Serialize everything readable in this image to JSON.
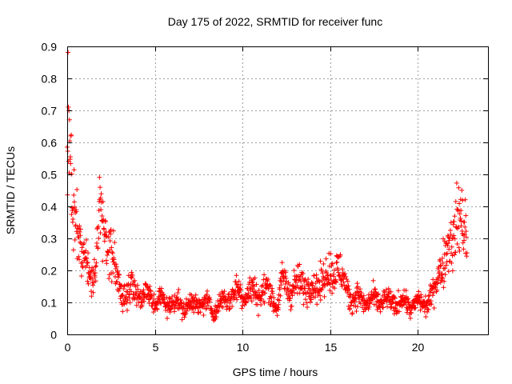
{
  "chart_data": {
    "type": "scatter",
    "title": "Day 175 of 2022, SRMTID for receiver func",
    "xlabel": "GPS time / hours",
    "ylabel": "SRMTID / TECUs",
    "xlim": [
      0,
      24
    ],
    "ylim": [
      0,
      0.9
    ],
    "xticks": [
      0,
      5,
      10,
      15,
      20
    ],
    "yticks": [
      0,
      0.1,
      0.2,
      0.3,
      0.4,
      0.5,
      0.6,
      0.7,
      0.8,
      0.9
    ],
    "grid": true,
    "marker": "+",
    "series": [
      {
        "name": "SRMTID",
        "color": "#ff0000",
        "anchors": [
          [
            0.0,
            0.45
          ],
          [
            0.05,
            0.8
          ],
          [
            0.15,
            0.55
          ],
          [
            0.3,
            0.38
          ],
          [
            0.5,
            0.36
          ],
          [
            0.7,
            0.3
          ],
          [
            1.0,
            0.22
          ],
          [
            1.3,
            0.18
          ],
          [
            1.6,
            0.2
          ],
          [
            1.9,
            0.42
          ],
          [
            2.1,
            0.3
          ],
          [
            2.4,
            0.28
          ],
          [
            2.7,
            0.22
          ],
          [
            3.0,
            0.14
          ],
          [
            3.3,
            0.12
          ],
          [
            3.6,
            0.15
          ],
          [
            4.0,
            0.13
          ],
          [
            4.5,
            0.12
          ],
          [
            5.0,
            0.11
          ],
          [
            5.5,
            0.1
          ],
          [
            6.0,
            0.1
          ],
          [
            6.5,
            0.09
          ],
          [
            7.0,
            0.09
          ],
          [
            7.5,
            0.1
          ],
          [
            8.0,
            0.09
          ],
          [
            8.5,
            0.08
          ],
          [
            9.0,
            0.11
          ],
          [
            9.5,
            0.13
          ],
          [
            10.0,
            0.13
          ],
          [
            10.5,
            0.13
          ],
          [
            11.0,
            0.13
          ],
          [
            11.5,
            0.14
          ],
          [
            12.0,
            0.09
          ],
          [
            12.3,
            0.17
          ],
          [
            12.7,
            0.14
          ],
          [
            13.0,
            0.15
          ],
          [
            13.5,
            0.16
          ],
          [
            14.0,
            0.14
          ],
          [
            14.5,
            0.17
          ],
          [
            15.0,
            0.19
          ],
          [
            15.4,
            0.21
          ],
          [
            15.8,
            0.16
          ],
          [
            16.3,
            0.11
          ],
          [
            16.8,
            0.11
          ],
          [
            17.3,
            0.1
          ],
          [
            17.8,
            0.11
          ],
          [
            18.3,
            0.1
          ],
          [
            18.8,
            0.1
          ],
          [
            19.3,
            0.1
          ],
          [
            19.8,
            0.09
          ],
          [
            20.3,
            0.1
          ],
          [
            20.8,
            0.11
          ],
          [
            21.2,
            0.2
          ],
          [
            21.6,
            0.25
          ],
          [
            22.0,
            0.3
          ],
          [
            22.3,
            0.38
          ],
          [
            22.6,
            0.33
          ],
          [
            22.8,
            0.3
          ]
        ]
      }
    ]
  }
}
